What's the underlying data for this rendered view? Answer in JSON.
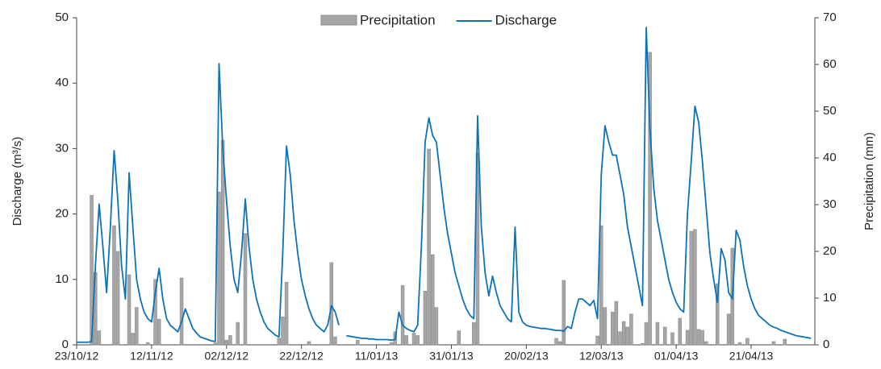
{
  "chart_data": {
    "type": "bar_line",
    "y_label": "Discharge (m³/s)",
    "y2_label": "Precipitation (mm)",
    "xlim": [
      "2012-10-23",
      "2013-05-08"
    ],
    "xticks": [
      {
        "value": "2012-10-23",
        "label": "23/10/12"
      },
      {
        "value": "2012-11-12",
        "label": "12/11/12"
      },
      {
        "value": "2012-12-02",
        "label": "02/12/12"
      },
      {
        "value": "2012-12-22",
        "label": "22/12/12"
      },
      {
        "value": "2013-01-11",
        "label": "11/01/13"
      },
      {
        "value": "2013-01-31",
        "label": "31/01/13"
      },
      {
        "value": "2013-02-20",
        "label": "20/02/13"
      },
      {
        "value": "2013-03-12",
        "label": "12/03/13"
      },
      {
        "value": "2013-04-01",
        "label": "01/04/13"
      },
      {
        "value": "2013-04-21",
        "label": "21/04/13"
      }
    ],
    "ylim": [
      0,
      50
    ],
    "yticks": [
      0,
      10,
      20,
      30,
      40,
      50
    ],
    "y2lim": [
      0,
      70
    ],
    "y2ticks": [
      0,
      10,
      20,
      30,
      40,
      50,
      60,
      70
    ],
    "x": [
      "2012-10-23",
      "2012-10-24",
      "2012-10-25",
      "2012-10-26",
      "2012-10-27",
      "2012-10-28",
      "2012-10-29",
      "2012-10-30",
      "2012-10-31",
      "2012-11-01",
      "2012-11-02",
      "2012-11-03",
      "2012-11-04",
      "2012-11-05",
      "2012-11-06",
      "2012-11-07",
      "2012-11-08",
      "2012-11-09",
      "2012-11-10",
      "2012-11-11",
      "2012-11-12",
      "2012-11-13",
      "2012-11-14",
      "2012-11-15",
      "2012-11-16",
      "2012-11-17",
      "2012-11-18",
      "2012-11-19",
      "2012-11-20",
      "2012-11-21",
      "2012-11-22",
      "2012-11-23",
      "2012-11-24",
      "2012-11-25",
      "2012-11-26",
      "2012-11-27",
      "2012-11-28",
      "2012-11-29",
      "2012-11-30",
      "2012-12-01",
      "2012-12-02",
      "2012-12-03",
      "2012-12-04",
      "2012-12-05",
      "2012-12-06",
      "2012-12-07",
      "2012-12-08",
      "2012-12-09",
      "2012-12-10",
      "2012-12-11",
      "2012-12-12",
      "2012-12-13",
      "2012-12-14",
      "2012-12-15",
      "2012-12-16",
      "2012-12-17",
      "2012-12-18",
      "2012-12-19",
      "2012-12-20",
      "2012-12-21",
      "2012-12-22",
      "2012-12-23",
      "2012-12-24",
      "2012-12-25",
      "2012-12-26",
      "2012-12-27",
      "2012-12-28",
      "2012-12-29",
      "2012-12-30",
      "2012-12-31",
      "2013-01-01",
      "2013-01-02",
      "2013-01-03",
      "2013-01-04",
      "2013-01-05",
      "2013-01-06",
      "2013-01-07",
      "2013-01-08",
      "2013-01-09",
      "2013-01-10",
      "2013-01-11",
      "2013-01-12",
      "2013-01-13",
      "2013-01-14",
      "2013-01-15",
      "2013-01-16",
      "2013-01-17",
      "2013-01-18",
      "2013-01-19",
      "2013-01-20",
      "2013-01-21",
      "2013-01-22",
      "2013-01-23",
      "2013-01-24",
      "2013-01-25",
      "2013-01-26",
      "2013-01-27",
      "2013-01-28",
      "2013-01-29",
      "2013-01-30",
      "2013-01-31",
      "2013-02-01",
      "2013-02-02",
      "2013-02-03",
      "2013-02-04",
      "2013-02-05",
      "2013-02-06",
      "2013-02-07",
      "2013-02-08",
      "2013-02-09",
      "2013-02-10",
      "2013-02-11",
      "2013-02-12",
      "2013-02-13",
      "2013-02-14",
      "2013-02-15",
      "2013-02-16",
      "2013-02-17",
      "2013-02-18",
      "2013-02-19",
      "2013-02-20",
      "2013-02-21",
      "2013-02-22",
      "2013-02-23",
      "2013-02-24",
      "2013-02-25",
      "2013-02-26",
      "2013-02-27",
      "2013-02-28",
      "2013-03-01",
      "2013-03-02",
      "2013-03-03",
      "2013-03-04",
      "2013-03-05",
      "2013-03-06",
      "2013-03-07",
      "2013-03-08",
      "2013-03-09",
      "2013-03-10",
      "2013-03-11",
      "2013-03-12",
      "2013-03-13",
      "2013-03-14",
      "2013-03-15",
      "2013-03-16",
      "2013-03-17",
      "2013-03-18",
      "2013-03-19",
      "2013-03-20",
      "2013-03-21",
      "2013-03-22",
      "2013-03-23",
      "2013-03-24",
      "2013-03-25",
      "2013-03-26",
      "2013-03-27",
      "2013-03-28",
      "2013-03-29",
      "2013-03-30",
      "2013-03-31",
      "2013-04-01",
      "2013-04-02",
      "2013-04-03",
      "2013-04-04",
      "2013-04-05",
      "2013-04-06",
      "2013-04-07",
      "2013-04-08",
      "2013-04-09",
      "2013-04-10",
      "2013-04-11",
      "2013-04-12",
      "2013-04-13",
      "2013-04-14",
      "2013-04-15",
      "2013-04-16",
      "2013-04-17",
      "2013-04-18",
      "2013-04-19",
      "2013-04-20",
      "2013-04-21",
      "2013-04-22",
      "2013-04-23",
      "2013-04-24",
      "2013-04-25",
      "2013-04-26",
      "2013-04-27",
      "2013-04-28",
      "2013-04-29",
      "2013-04-30",
      "2013-05-01",
      "2013-05-02",
      "2013-05-03",
      "2013-05-04",
      "2013-05-05",
      "2013-05-06",
      "2013-05-07"
    ],
    "series": [
      {
        "name": "Precipitation",
        "type": "bar",
        "axis": "y2",
        "color": "#a6a6a6",
        "values": [
          0,
          0,
          0,
          0,
          32,
          15.5,
          3,
          0,
          0,
          0,
          25.5,
          20,
          0,
          0,
          15,
          2.5,
          8,
          0,
          0,
          0.5,
          0,
          14,
          5.5,
          0,
          0,
          0,
          0,
          0,
          14.3,
          0,
          0,
          0,
          0,
          0,
          0,
          0,
          0,
          0.4,
          32.7,
          43.8,
          1,
          2,
          0,
          4.8,
          0,
          23.8,
          0,
          0,
          0,
          0,
          0,
          0,
          0,
          0,
          1.4,
          6,
          13.4,
          0,
          0,
          0,
          0,
          0,
          0.7,
          0,
          0,
          0,
          0,
          0,
          17.6,
          1.7,
          0,
          0,
          0,
          0,
          0,
          1,
          0,
          0,
          0,
          0,
          0,
          0,
          0,
          0,
          0.5,
          2.8,
          0,
          12.7,
          2,
          0,
          2.5,
          2,
          0,
          11.5,
          41.9,
          19.3,
          8,
          0,
          0,
          0,
          0,
          0,
          3,
          0,
          0,
          0,
          4.8,
          41,
          0,
          0,
          0,
          0,
          0,
          0,
          0,
          0,
          0,
          0,
          0,
          0,
          0,
          0,
          0,
          0,
          0,
          0,
          0,
          0,
          1.4,
          0.7,
          13.8,
          0,
          0,
          0,
          0,
          0,
          0,
          0,
          0,
          1.9,
          25.5,
          8,
          0,
          7,
          9.3,
          2.8,
          5,
          3.8,
          6.6,
          0,
          0,
          0.3,
          4.8,
          62.6,
          0,
          4.8,
          0,
          3.8,
          0,
          2.6,
          0,
          5.7,
          0,
          3.1,
          24.3,
          24.7,
          3.3,
          3.1,
          0.7,
          0,
          0,
          13.1,
          0,
          0,
          6.6,
          20.7,
          0,
          0.5,
          0,
          1.4,
          0,
          0,
          0,
          0,
          0,
          0,
          0.7,
          0,
          0,
          1.2,
          0,
          0,
          0,
          0,
          0,
          0,
          0
        ]
      },
      {
        "name": "Discharge",
        "type": "line",
        "axis": "y",
        "color": "#0d72b8",
        "values": [
          0.4,
          0.4,
          0.4,
          0.4,
          0.5,
          12,
          21.5,
          15,
          8,
          18,
          29.7,
          22,
          12,
          7,
          26.3,
          18,
          10,
          7,
          5,
          4,
          3.5,
          8,
          11.7,
          7,
          4,
          3,
          2.5,
          2,
          3.5,
          5.5,
          4,
          2.5,
          1.8,
          1.2,
          1,
          0.8,
          0.6,
          0.5,
          43,
          30,
          22,
          15,
          10,
          8,
          14,
          22.3,
          15,
          10,
          7,
          5,
          3.5,
          2.5,
          2,
          1.5,
          1.2,
          14,
          30.4,
          26,
          19,
          14,
          10,
          7.5,
          5.5,
          4,
          3,
          2.5,
          2,
          3,
          6,
          5,
          3,
          null,
          1.4,
          1.3,
          1.2,
          1.1,
          1,
          1,
          0.9,
          0.9,
          0.8,
          0.8,
          0.8,
          0.8,
          0.7,
          0.8,
          5,
          3,
          2.5,
          2.2,
          2,
          3,
          15,
          31,
          34.7,
          32,
          31,
          26,
          21,
          17,
          14,
          11,
          9,
          7,
          5.5,
          4.5,
          4,
          35,
          18,
          11,
          7.5,
          10.5,
          8,
          6,
          5,
          4,
          3.5,
          18,
          5,
          3.5,
          3,
          2.8,
          2.7,
          2.6,
          2.5,
          2.5,
          2.4,
          2.3,
          2.2,
          2.2,
          2.1,
          2.8,
          2.5,
          5,
          7,
          7,
          6.5,
          6,
          6.8,
          4,
          26,
          33.5,
          31,
          29,
          29,
          26,
          23,
          18,
          15,
          12,
          9,
          6,
          48.5,
          33,
          24,
          19,
          16,
          13,
          10,
          8,
          6.5,
          5.5,
          5,
          20,
          28,
          36.5,
          34,
          28,
          21,
          14,
          10,
          6.5,
          14.7,
          13,
          8,
          7,
          17.5,
          16,
          12,
          9,
          7,
          5.5,
          4.5,
          4,
          3.5,
          3,
          2.7,
          2.5,
          2.2,
          2,
          1.8,
          1.6,
          1.4,
          1.3,
          1.2,
          1.1,
          1
        ]
      }
    ]
  }
}
